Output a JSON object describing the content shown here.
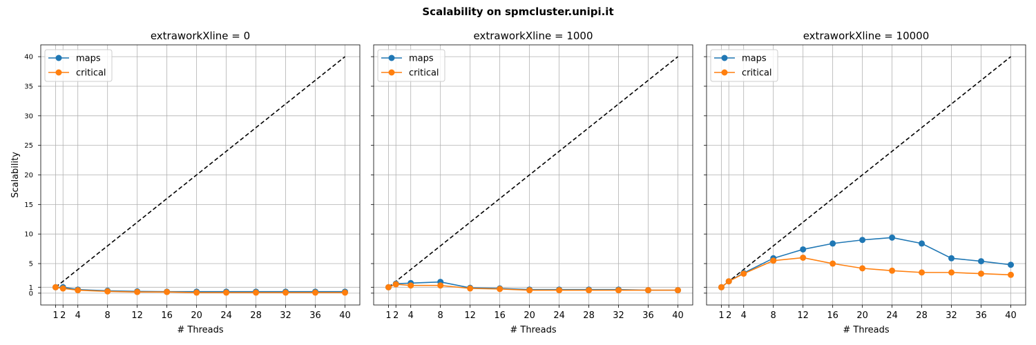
{
  "figure_title": "Scalability on spmcluster.unipi.it",
  "colors": {
    "maps": "#1f77b4",
    "critical": "#ff7f0e",
    "ideal": "#000000"
  },
  "chart_data": [
    {
      "type": "line",
      "title": "extraworkXline = 0",
      "xlabel": "# Threads",
      "ylabel": "Scalability",
      "x": [
        1,
        2,
        4,
        8,
        12,
        16,
        20,
        24,
        28,
        32,
        36,
        40
      ],
      "xticks": [
        "1",
        "2",
        "4",
        "8",
        "12",
        "16",
        "20",
        "24",
        "28",
        "32",
        "36",
        "40"
      ],
      "yticks": [
        "0",
        "1",
        "5",
        "10",
        "15",
        "20",
        "25",
        "30",
        "35",
        "40"
      ],
      "ylim": [
        -2,
        42
      ],
      "xlim": [
        -1,
        42
      ],
      "grid": true,
      "legend_position": "upper left",
      "ideal_line": {
        "style": "dashed",
        "from": [
          1,
          1
        ],
        "to": [
          40,
          40
        ]
      },
      "series": [
        {
          "name": "maps",
          "values": [
            1.0,
            1.0,
            0.6,
            0.4,
            0.3,
            0.25,
            0.25,
            0.25,
            0.25,
            0.25,
            0.25,
            0.25
          ]
        },
        {
          "name": "critical",
          "values": [
            1.0,
            0.8,
            0.5,
            0.3,
            0.2,
            0.2,
            0.1,
            0.1,
            0.1,
            0.1,
            0.1,
            0.1
          ]
        }
      ]
    },
    {
      "type": "line",
      "title": "extraworkXline = 1000",
      "xlabel": "# Threads",
      "ylabel": "",
      "x": [
        1,
        2,
        4,
        8,
        12,
        16,
        20,
        24,
        28,
        32,
        36,
        40
      ],
      "xticks": [
        "1",
        "2",
        "4",
        "8",
        "12",
        "16",
        "20",
        "24",
        "28",
        "32",
        "36",
        "40"
      ],
      "yticks": [],
      "ylim": [
        -2,
        42
      ],
      "xlim": [
        -1,
        42
      ],
      "grid": true,
      "legend_position": "upper left",
      "ideal_line": {
        "style": "dashed",
        "from": [
          1,
          1
        ],
        "to": [
          40,
          40
        ]
      },
      "series": [
        {
          "name": "maps",
          "values": [
            1.0,
            1.6,
            1.7,
            1.9,
            0.9,
            0.8,
            0.6,
            0.6,
            0.6,
            0.6,
            0.5,
            0.5
          ]
        },
        {
          "name": "critical",
          "values": [
            1.0,
            1.5,
            1.3,
            1.3,
            0.8,
            0.7,
            0.5,
            0.5,
            0.5,
            0.5,
            0.5,
            0.5
          ]
        }
      ]
    },
    {
      "type": "line",
      "title": "extraworkXline = 10000",
      "xlabel": "# Threads",
      "ylabel": "",
      "x": [
        1,
        2,
        4,
        8,
        12,
        16,
        20,
        24,
        28,
        32,
        36,
        40
      ],
      "xticks": [
        "1",
        "2",
        "4",
        "8",
        "12",
        "16",
        "20",
        "24",
        "28",
        "32",
        "36",
        "40"
      ],
      "yticks": [],
      "ylim": [
        -2,
        42
      ],
      "xlim": [
        -1,
        42
      ],
      "grid": true,
      "legend_position": "upper left",
      "ideal_line": {
        "style": "dashed",
        "from": [
          1,
          1
        ],
        "to": [
          40,
          40
        ]
      },
      "series": [
        {
          "name": "maps",
          "values": [
            1.0,
            2.0,
            3.4,
            5.9,
            7.4,
            8.4,
            9.0,
            9.4,
            8.4,
            5.9,
            5.4,
            4.8
          ]
        },
        {
          "name": "critical",
          "values": [
            1.0,
            2.0,
            3.3,
            5.5,
            6.0,
            5.0,
            4.2,
            3.8,
            3.5,
            3.5,
            3.3,
            3.1
          ]
        }
      ]
    }
  ]
}
